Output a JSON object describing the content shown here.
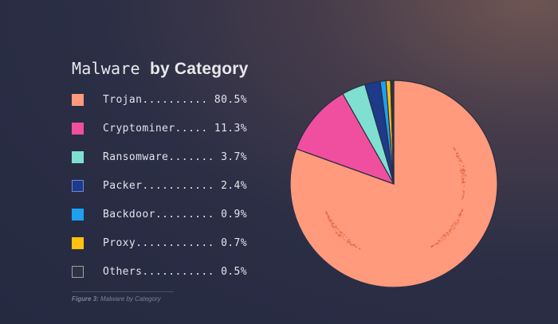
{
  "chart_data": {
    "type": "pie",
    "title_light": "Malware",
    "title_bold": "by Category",
    "slices": [
      {
        "label": "Trojan",
        "value": 80.5,
        "display": "80.5%",
        "color": "#ff9a7c",
        "border": "#ff9a7c"
      },
      {
        "label": "Cryptominer",
        "value": 11.3,
        "display": "11.3%",
        "color": "#f04fa0",
        "border": "#f04fa0"
      },
      {
        "label": "Ransomware",
        "value": 3.7,
        "display": "3.7%",
        "color": "#7fe0d2",
        "border": "#7fe0d2"
      },
      {
        "label": "Packer",
        "value": 2.4,
        "display": "2.4%",
        "color": "#1e3a8a",
        "border": "#6e86d8"
      },
      {
        "label": "Backdoor",
        "value": 0.9,
        "display": "0.9%",
        "color": "#1ea0f0",
        "border": "#1ea0f0"
      },
      {
        "label": "Proxy",
        "value": 0.7,
        "display": "0.7%",
        "color": "#ffc20e",
        "border": "#ffc20e"
      },
      {
        "label": "Others",
        "value": 0.5,
        "display": "0.5%",
        "color": "#2f3340",
        "border": "#9aa0b0"
      }
    ],
    "legend_position": "left",
    "start": "top",
    "direction": "clockwise"
  },
  "caption": {
    "label": "Figure 3:",
    "text": "Malware by Category"
  }
}
